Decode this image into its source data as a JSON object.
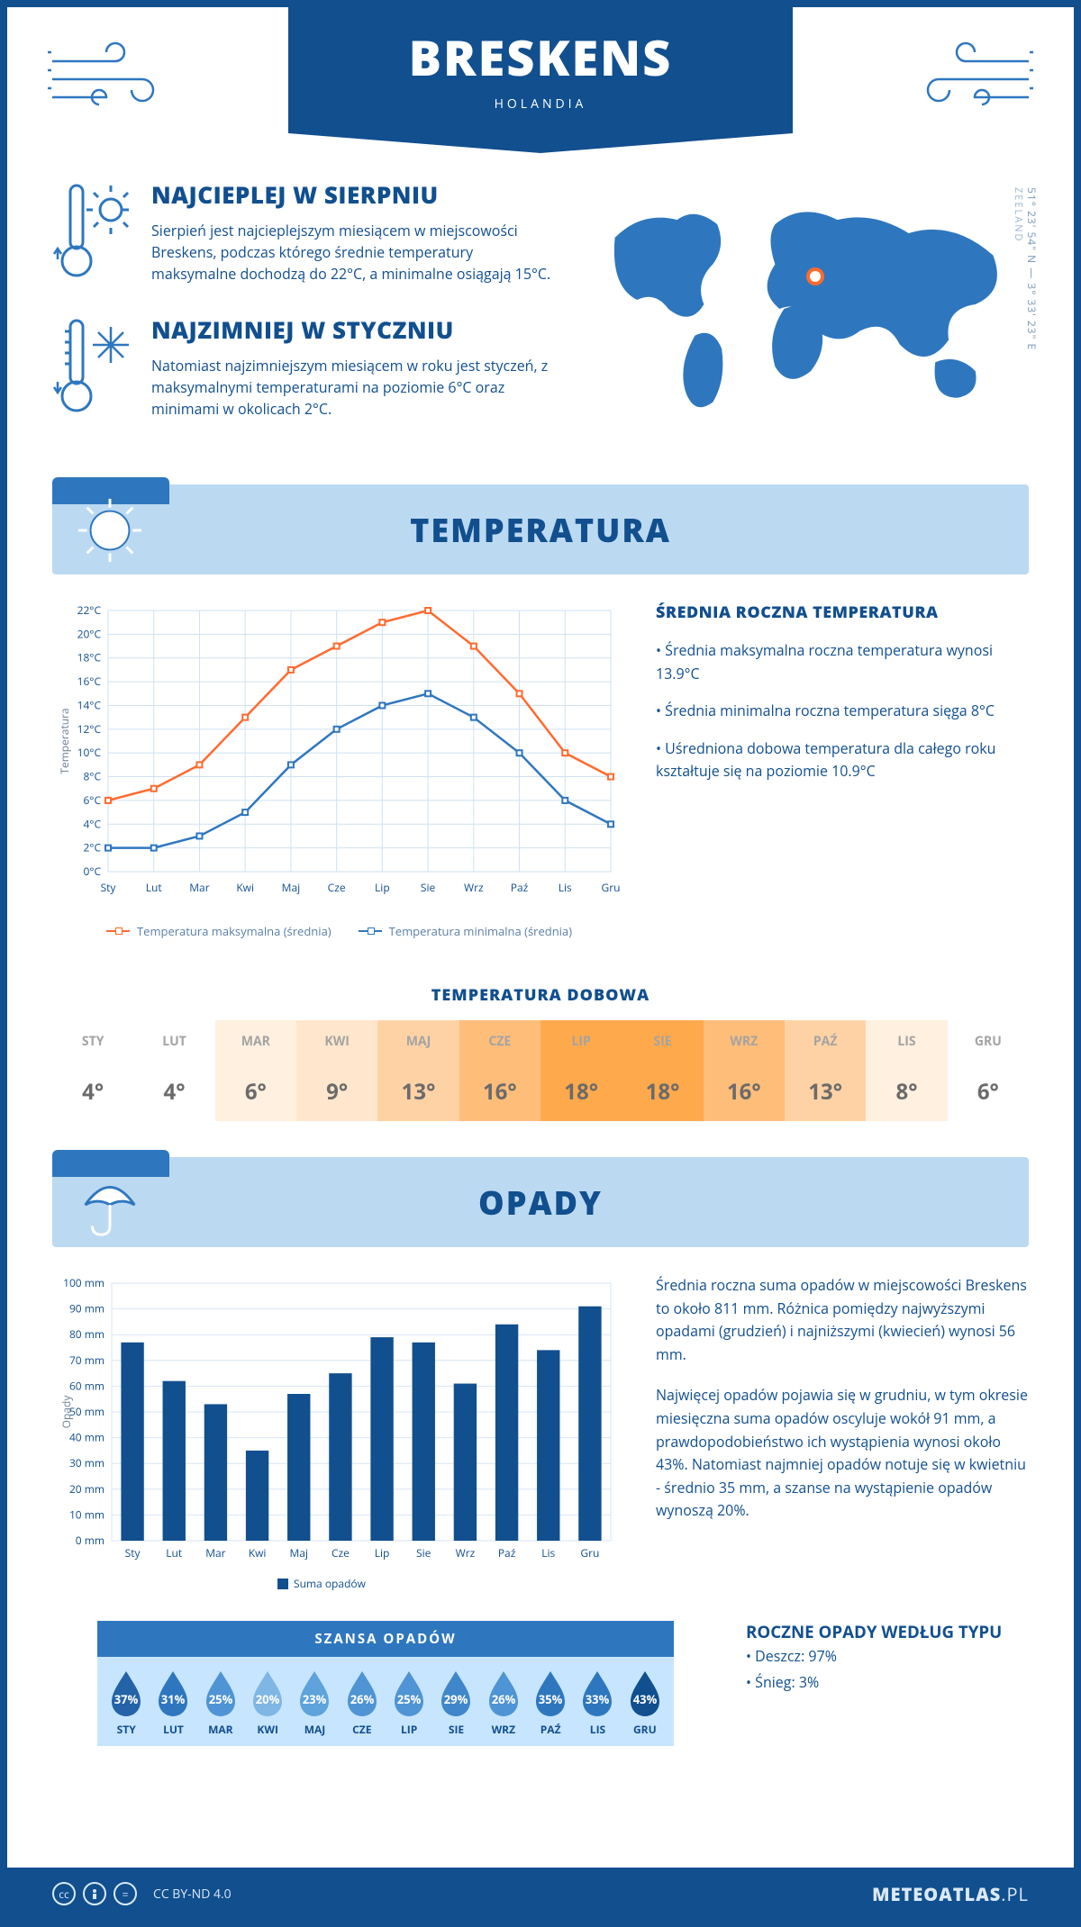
{
  "header": {
    "city": "BRESKENS",
    "country": "HOLANDIA"
  },
  "map": {
    "coords": "51° 23' 54\" N — 3° 33' 23\" E",
    "region": "ZEELAND",
    "marker": {
      "left_pct": 50,
      "top_pct": 33
    },
    "land_color": "#2e77bf",
    "ocean_color": "#ffffff"
  },
  "intro": {
    "hot": {
      "title": "NAJCIEPLEJ W SIERPNIU",
      "text": "Sierpień jest najcieplejszym miesiącem w miejscowości Breskens, podczas którego średnie temperatury maksymalne dochodzą do 22°C, a minimalne osiągają 15°C."
    },
    "cold": {
      "title": "NAJZIMNIEJ W STYCZNIU",
      "text": "Natomiast najzimniejszym miesiącem w roku jest styczeń, z maksymalnymi temperaturami na poziomie 6°C oraz minimami w okolicach 2°C."
    }
  },
  "temperature": {
    "section_title": "TEMPERATURA",
    "chart": {
      "type": "line",
      "months": [
        "Sty",
        "Lut",
        "Mar",
        "Kwi",
        "Maj",
        "Cze",
        "Lip",
        "Sie",
        "Wrz",
        "Paź",
        "Lis",
        "Gru"
      ],
      "series": [
        {
          "name": "Temperatura maksymalna (średnia)",
          "color": "#ff6a2f",
          "values": [
            6,
            7,
            9,
            13,
            17,
            19,
            21,
            22,
            19,
            15,
            10,
            8
          ]
        },
        {
          "name": "Temperatura minimalna (średnia)",
          "color": "#2e77bf",
          "values": [
            2,
            2,
            3,
            5,
            9,
            12,
            14,
            15,
            13,
            10,
            6,
            4
          ]
        }
      ],
      "ylim": [
        0,
        22
      ],
      "ytick_step": 2,
      "y_unit": "°C",
      "grid_color": "#cfe1f2",
      "background_color": "#ffffff",
      "ylabel": "Temperatura",
      "legend_labels": [
        "Temperatura maksymalna (średnia)",
        "Temperatura minimalna (średnia)"
      ]
    },
    "annual": {
      "title": "ŚREDNIA ROCZNA TEMPERATURA",
      "bullets": [
        "Średnia maksymalna roczna temperatura wynosi 13.9°C",
        "Średnia minimalna roczna temperatura sięga 8°C",
        "Uśredniona dobowa temperatura dla całego roku kształtuje się na poziomie 10.9°C"
      ]
    },
    "daily": {
      "title": "TEMPERATURA DOBOWA",
      "months": [
        "STY",
        "LUT",
        "MAR",
        "KWI",
        "MAJ",
        "CZE",
        "LIP",
        "SIE",
        "WRZ",
        "PAŹ",
        "LIS",
        "GRU"
      ],
      "values": [
        "4°",
        "4°",
        "6°",
        "9°",
        "13°",
        "16°",
        "18°",
        "18°",
        "16°",
        "13°",
        "8°",
        "6°"
      ],
      "cell_colors": [
        "#ffffff",
        "#ffffff",
        "#fff0e0",
        "#ffe6cc",
        "#ffd2a6",
        "#ffbd7a",
        "#ffa94d",
        "#ffa94d",
        "#ffbd7a",
        "#ffd2a6",
        "#fff0e0",
        "#ffffff"
      ]
    }
  },
  "precipitation": {
    "section_title": "OPADY",
    "chart": {
      "type": "bar",
      "months": [
        "Sty",
        "Lut",
        "Mar",
        "Kwi",
        "Maj",
        "Cze",
        "Lip",
        "Sie",
        "Wrz",
        "Paź",
        "Lis",
        "Gru"
      ],
      "values": [
        77,
        62,
        53,
        35,
        57,
        65,
        79,
        77,
        61,
        84,
        74,
        91
      ],
      "bar_color": "#114f8f",
      "ylim": [
        0,
        100
      ],
      "ytick_step": 10,
      "y_unit": " mm",
      "grid_color": "#d7e6f4",
      "background_color": "#ffffff",
      "ylabel": "Opady",
      "legend_label": "Suma opadów"
    },
    "paragraphs": [
      "Średnia roczna suma opadów w miejscowości Breskens to około 811 mm. Różnica pomiędzy najwyższymi opadami (grudzień) i najniższymi (kwiecień) wynosi 56 mm.",
      "Najwięcej opadów pojawia się w grudniu, w tym okresie miesięczna suma opadów oscyluje wokół 91 mm, a prawdopodobieństwo ich wystąpienia wynosi około 43%. Natomiast najmniej opadów notuje się w kwietniu - średnio 35 mm, a szanse na wystąpienie opadów wynoszą 20%."
    ],
    "chance": {
      "title": "SZANSA OPADÓW",
      "months": [
        "STY",
        "LUT",
        "MAR",
        "KWI",
        "MAJ",
        "CZE",
        "LIP",
        "SIE",
        "WRZ",
        "PAŹ",
        "LIS",
        "GRU"
      ],
      "percent": [
        37,
        31,
        25,
        20,
        23,
        26,
        25,
        29,
        26,
        35,
        33,
        43
      ],
      "drop_colors": [
        "#2463a8",
        "#2e77bf",
        "#4f94d4",
        "#7fb6e4",
        "#5ea3db",
        "#4f94d4",
        "#4f94d4",
        "#3f87ca",
        "#4f94d4",
        "#2e77bf",
        "#2e77bf",
        "#114f8f"
      ]
    },
    "by_type": {
      "title": "ROCZNE OPADY WEDŁUG TYPU",
      "bullets": [
        "Deszcz: 97%",
        "Śnieg: 3%"
      ]
    }
  },
  "footer": {
    "license": "CC BY-ND 4.0",
    "site_bold": "METEOATLAS",
    "site_tld": ".PL"
  },
  "colors": {
    "primary": "#114f8f",
    "accent": "#2e77bf",
    "light_blue": "#bcd9f2"
  }
}
